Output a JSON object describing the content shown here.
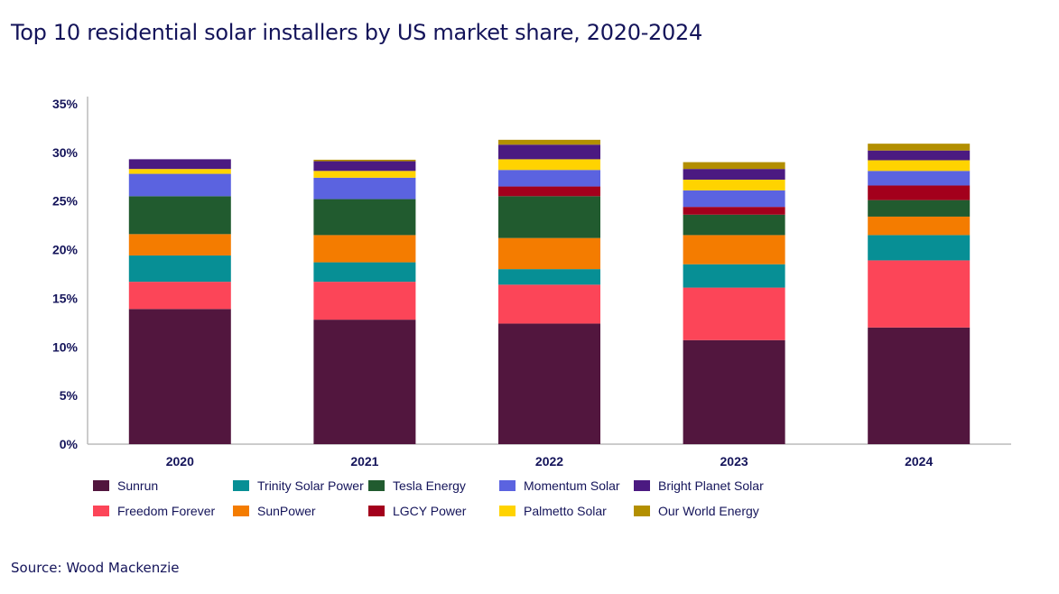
{
  "chart_data": {
    "type": "bar",
    "stacked": true,
    "title": "Top 10 residential solar installers by US market share, 2020-2024",
    "source": "Source: Wood Mackenzie",
    "categories": [
      "2020",
      "2021",
      "2022",
      "2023",
      "2024"
    ],
    "ylim": [
      0,
      35
    ],
    "yticks": [
      "0%",
      "5%",
      "10%",
      "15%",
      "20%",
      "25%",
      "30%",
      "35%"
    ],
    "grid": false,
    "legend_position": "bottom",
    "series": [
      {
        "name": "Sunrun",
        "color": "#52163e",
        "values": [
          13.9,
          12.8,
          12.4,
          10.7,
          12.0
        ]
      },
      {
        "name": "Freedom Forever",
        "color": "#fc4558",
        "values": [
          2.8,
          3.9,
          4.0,
          5.4,
          6.9
        ]
      },
      {
        "name": "Trinity Solar Power",
        "color": "#078f95",
        "values": [
          2.7,
          2.0,
          1.6,
          2.4,
          2.6
        ]
      },
      {
        "name": "SunPower",
        "color": "#f47c00",
        "values": [
          2.2,
          2.8,
          3.2,
          3.0,
          1.9
        ]
      },
      {
        "name": "Tesla Energy",
        "color": "#215b2f",
        "values": [
          3.9,
          3.7,
          4.3,
          2.1,
          1.7
        ]
      },
      {
        "name": "LGCY Power",
        "color": "#a3001c",
        "values": [
          0,
          0,
          1.0,
          0.8,
          1.5
        ]
      },
      {
        "name": "Momentum Solar",
        "color": "#5b63e0",
        "values": [
          2.3,
          2.2,
          1.7,
          1.7,
          1.5
        ]
      },
      {
        "name": "Palmetto Solar",
        "color": "#ffd300",
        "values": [
          0.5,
          0.7,
          1.1,
          1.1,
          1.1
        ]
      },
      {
        "name": "Bright Planet Solar",
        "color": "#4b1a81",
        "values": [
          1.0,
          1.0,
          1.5,
          1.1,
          1.0
        ]
      },
      {
        "name": "Our World Energy",
        "color": "#b38f00",
        "values": [
          0,
          0.15,
          0.5,
          0.7,
          0.7
        ]
      }
    ],
    "legend_order": [
      [
        "Sunrun",
        "Trinity Solar Power",
        "Tesla Energy",
        "Momentum Solar",
        "Bright Planet Solar"
      ],
      [
        "Freedom Forever",
        "SunPower",
        "LGCY Power",
        "Palmetto Solar",
        "Our World Energy"
      ]
    ]
  }
}
